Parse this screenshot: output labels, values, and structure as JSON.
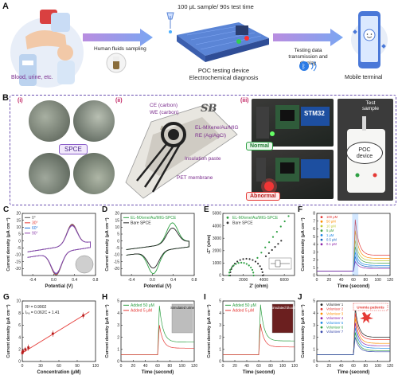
{
  "panelA": {
    "letter": "A",
    "sample_text": "Blood, urine, etc.",
    "step1": "Human fluids sampling",
    "step2_top": "100 μL sample/ 90s test time",
    "step2_bottom_1": "POC testing device",
    "step2_bottom_2": "Electrochemical diagnosis",
    "step3_1": "Testing data",
    "step3_2": "transmission and display",
    "terminal": "Mobile terminal"
  },
  "panelB": {
    "letter": "B",
    "roman1": "(i)",
    "roman2": "(ii)",
    "roman3": "(iii)",
    "spce": "SPCE",
    "sb": "SB",
    "ce": "CE (carbon)",
    "we": "WE (carbon)",
    "wemod": "EL-MXene/Au/MIG",
    "re": "RE (Ag/AgCl)",
    "insul": "Insulation paste",
    "pet": "PET membrane",
    "stm": "STM32",
    "normal": "Normal",
    "abnormal": "Abnormal",
    "test_sample_1": "Test",
    "test_sample_2": "sample",
    "poc_1": "POC",
    "poc_2": "device"
  },
  "colors": {
    "green": "#2ea043",
    "red": "#e53935",
    "purple": "#7b4fc9",
    "blue": "#1e6fd9"
  },
  "chart_data": [
    {
      "id": "C",
      "type": "line",
      "xlabel": "Potential (V)",
      "ylabel": "Current density (μA cm⁻²)",
      "xlim": [
        -0.6,
        0.8
      ],
      "ylim": [
        -25,
        20
      ],
      "xticks": [
        -0.4,
        0.0,
        0.4,
        0.8
      ],
      "xtick_labels": [
        "-0.4",
        "0.0",
        "0.4",
        "0.8"
      ],
      "yticks": [
        -20,
        -15,
        -10,
        -5,
        0,
        5,
        10,
        15,
        20
      ],
      "ytick_labels": [
        "-20",
        "-15",
        "-10",
        "-5",
        "0",
        "5",
        "10",
        "15",
        "20"
      ],
      "legend": [
        "0°",
        "30°",
        "60°",
        "90°"
      ],
      "series_colors": [
        "#555555",
        "#e53935",
        "#1e6fd9",
        "#8e44ad"
      ]
    },
    {
      "id": "D",
      "type": "line",
      "xlabel": "Potential (V)",
      "ylabel": "Current density (μA cm⁻²)",
      "xlim": [
        -0.6,
        0.8
      ],
      "ylim": [
        -25,
        20
      ],
      "xticks": [
        -0.4,
        0.0,
        0.4,
        0.8
      ],
      "xtick_labels": [
        "-0.4",
        "0.0",
        "0.4",
        "0.8"
      ],
      "yticks": [
        -20,
        -15,
        -10,
        -5,
        0,
        5,
        10,
        15,
        20
      ],
      "ytick_labels": [
        "-20",
        "-15",
        "-10",
        "-5",
        "0",
        "5",
        "10",
        "15",
        "20"
      ],
      "legend": [
        "EL-MXene/Au/MIG-SPCE",
        "Bare SPCE"
      ],
      "series_colors": [
        "#2ea043",
        "#222222"
      ]
    },
    {
      "id": "E",
      "type": "scatter",
      "xlabel": "Z' (ohm)",
      "ylabel": "-Z'' (ohm)",
      "xlim": [
        0,
        7000
      ],
      "ylim": [
        0,
        5000
      ],
      "xticks": [
        0,
        2000,
        4000,
        6000
      ],
      "xtick_labels": [
        "0",
        "2000",
        "4000",
        "6000"
      ],
      "yticks": [
        0,
        1000,
        2000,
        3000,
        4000,
        5000
      ],
      "ytick_labels": [
        "0",
        "1000",
        "2000",
        "3000",
        "4000",
        "5000"
      ],
      "legend": [
        "EL-MXene/Au/MIG-SPCE",
        "Bare SPCE"
      ],
      "series_colors": [
        "#2ea043",
        "#333333"
      ]
    },
    {
      "id": "F",
      "type": "line",
      "xlabel": "Time (second)",
      "ylabel": "Current density (μA cm⁻²)",
      "xlim": [
        0,
        120
      ],
      "ylim": [
        0,
        8
      ],
      "xticks": [
        0,
        20,
        40,
        60,
        80,
        100,
        120
      ],
      "xtick_labels": [
        "0",
        "20",
        "40",
        "60",
        "80",
        "100",
        "120"
      ],
      "yticks": [
        0,
        1,
        2,
        3,
        4,
        5,
        6,
        7,
        8
      ],
      "ytick_labels": [
        "0",
        "1",
        "2",
        "3",
        "4",
        "5",
        "6",
        "7",
        "8"
      ],
      "legend": [
        "100 μM",
        "50 μM",
        "10 μM",
        "5 μM",
        "1 μM",
        "0.5 μM",
        "0.1 μM"
      ],
      "series_colors": [
        "#e53935",
        "#ff8f00",
        "#c0ca33",
        "#43a047",
        "#1e88e5",
        "#1565c0",
        "#8e24aa"
      ],
      "peaks": [
        7.2,
        5.8,
        4.5,
        3.7,
        3.0,
        2.4,
        1.8
      ],
      "tails": [
        2.6,
        2.2,
        1.9,
        1.6,
        1.3,
        1.1,
        0.9
      ]
    },
    {
      "id": "G",
      "type": "scatter",
      "xlabel": "Concentration (μM)",
      "ylabel": "Current density (μA cm⁻²)",
      "xlim": [
        0,
        120
      ],
      "ylim": [
        0,
        10
      ],
      "xticks": [
        0,
        30,
        60,
        90,
        120
      ],
      "xtick_labels": [
        "0",
        "30",
        "60",
        "90",
        "120"
      ],
      "yticks": [
        0,
        2,
        4,
        6,
        8,
        10
      ],
      "ytick_labels": [
        "0",
        "2",
        "4",
        "6",
        "8",
        "10"
      ],
      "annot1": "R² = 0.9902",
      "annot2": "Iₚₐ = 0.062C + 1.41",
      "x": [
        0.1,
        0.5,
        1,
        5,
        10,
        50,
        100
      ],
      "y": [
        1.4,
        1.55,
        1.7,
        2.0,
        2.3,
        4.6,
        7.6
      ],
      "err": [
        0.3,
        0.3,
        0.4,
        0.4,
        0.5,
        0.5,
        0.5
      ],
      "fit_slope": 0.062,
      "fit_intercept": 1.41
    },
    {
      "id": "H",
      "type": "line",
      "xlabel": "Time (second)",
      "ylabel": "Current density (μA cm⁻²)",
      "xlim": [
        0,
        120
      ],
      "ylim": [
        0,
        5
      ],
      "xticks": [
        0,
        20,
        40,
        60,
        80,
        100,
        120
      ],
      "xtick_labels": [
        "0",
        "20",
        "40",
        "60",
        "80",
        "100",
        "120"
      ],
      "yticks": [
        0,
        1,
        2,
        3,
        4,
        5
      ],
      "ytick_labels": [
        "0",
        "1",
        "2",
        "3",
        "4",
        "5"
      ],
      "legend": [
        "Added 50 μM",
        "Added 5 μM"
      ],
      "series_colors": [
        "#2ea043",
        "#e53935"
      ],
      "inset_label": "Simulated urine",
      "peaks": [
        4.6,
        3.0
      ],
      "tails": [
        1.6,
        1.1
      ]
    },
    {
      "id": "I",
      "type": "line",
      "xlabel": "Time (second)",
      "ylabel": "Current density (μA cm⁻²)",
      "xlim": [
        0,
        120
      ],
      "ylim": [
        0,
        5
      ],
      "xticks": [
        0,
        20,
        40,
        60,
        80,
        100,
        120
      ],
      "xtick_labels": [
        "0",
        "20",
        "40",
        "60",
        "80",
        "100",
        "120"
      ],
      "yticks": [
        0,
        1,
        2,
        3,
        4,
        5
      ],
      "ytick_labels": [
        "0",
        "1",
        "2",
        "3",
        "4",
        "5"
      ],
      "legend": [
        "Added 50 μM",
        "Added 5 μM"
      ],
      "series_colors": [
        "#2ea043",
        "#e53935"
      ],
      "inset_label": "Simulated blood",
      "peaks": [
        4.7,
        3.1
      ],
      "tails": [
        1.7,
        1.2
      ]
    },
    {
      "id": "J",
      "type": "line",
      "xlabel": "Time (second)",
      "ylabel": "Current density (μA cm⁻²)",
      "xlim": [
        0,
        120
      ],
      "ylim": [
        0,
        5
      ],
      "xticks": [
        0,
        20,
        40,
        60,
        80,
        100,
        120
      ],
      "xtick_labels": [
        "0",
        "20",
        "40",
        "60",
        "80",
        "100",
        "120"
      ],
      "yticks": [
        0,
        1,
        2,
        3,
        4,
        5
      ],
      "ytick_labels": [
        "0",
        "1",
        "2",
        "3",
        "4",
        "5"
      ],
      "legend": [
        "Volunteer 1",
        "Volunteer 2",
        "Volunteer 3",
        "Volunteer 4",
        "Volunteer 5",
        "Volunteer 6",
        "Volunteer 7"
      ],
      "series_colors": [
        "#222222",
        "#e53935",
        "#ff8f00",
        "#8e24aa",
        "#1e88e5",
        "#2ea043",
        "#3949ab"
      ],
      "warning": "Uremia patients",
      "peaks": [
        4.4,
        4.0,
        3.6,
        3.2,
        2.8,
        2.4,
        2.0
      ],
      "tails": [
        2.0,
        1.8,
        1.5,
        1.3,
        1.1,
        0.9,
        0.8
      ]
    }
  ]
}
